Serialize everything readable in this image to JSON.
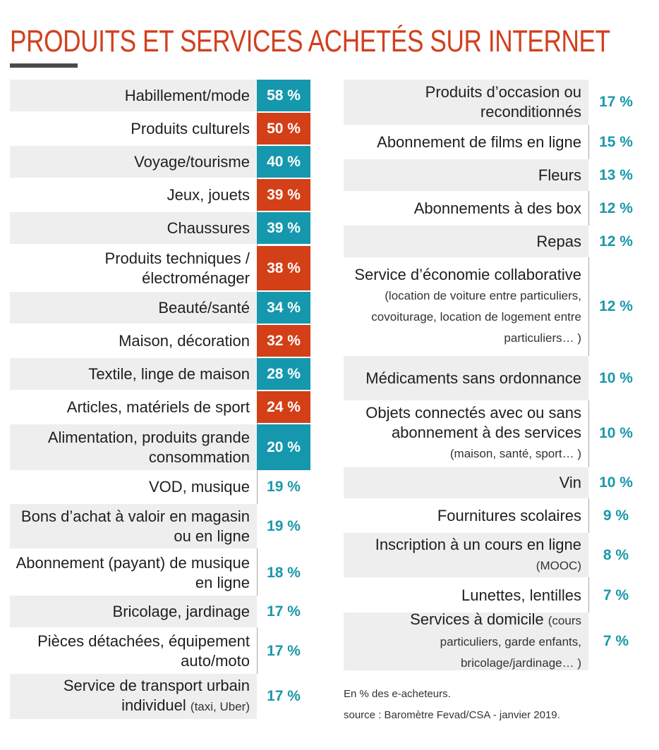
{
  "title": "PRODUITS ET SERVICES ACHETÉS SUR INTERNET",
  "colors": {
    "title": "#d2401e",
    "teal": "#1598ad",
    "orange": "#d33f17",
    "value_text": "#1a98aa",
    "shade": "#eeeeee"
  },
  "footnote": {
    "line1": "En % des e-acheteurs.",
    "line2": "source : Baromètre Fevad/CSA - janvier 2019."
  },
  "chart_data": {
    "type": "table",
    "unit": "%",
    "left": [
      {
        "label": "Habillement/mode",
        "value": 58,
        "value_label": "58 %",
        "style": "teal"
      },
      {
        "label": "Produits culturels",
        "value": 50,
        "value_label": "50 %",
        "style": "orange"
      },
      {
        "label": "Voyage/tourisme",
        "value": 40,
        "value_label": "40 %",
        "style": "teal"
      },
      {
        "label": "Jeux, jouets",
        "value": 39,
        "value_label": "39 %",
        "style": "orange"
      },
      {
        "label": "Chaussures",
        "value": 39,
        "value_label": "39 %",
        "style": "teal"
      },
      {
        "label": "Produits techniques / électroménager",
        "value": 38,
        "value_label": "38 %",
        "style": "orange"
      },
      {
        "label": "Beauté/santé",
        "value": 34,
        "value_label": "34 %",
        "style": "teal"
      },
      {
        "label": "Maison, décoration",
        "value": 32,
        "value_label": "32 %",
        "style": "orange"
      },
      {
        "label": "Textile, linge de maison",
        "value": 28,
        "value_label": "28 %",
        "style": "teal"
      },
      {
        "label": "Articles, matériels de sport",
        "value": 24,
        "value_label": "24 %",
        "style": "orange"
      },
      {
        "label": "Alimentation, produits grande consommation",
        "value": 20,
        "value_label": "20 %",
        "style": "teal"
      },
      {
        "label": "VOD, musique",
        "value": 19,
        "value_label": "19 %",
        "style": "plain"
      },
      {
        "label": "Bons d’achat à valoir en magasin ou en ligne",
        "value": 19,
        "value_label": "19 %",
        "style": "plain"
      },
      {
        "label": "Abonnement (payant) de musique en ligne",
        "value": 18,
        "value_label": "18 %",
        "style": "plain"
      },
      {
        "label": "Bricolage, jardinage",
        "value": 17,
        "value_label": "17 %",
        "style": "plain"
      },
      {
        "label": "Pièces détachées, équipement auto/moto",
        "value": 17,
        "value_label": "17 %",
        "style": "plain"
      },
      {
        "label": "Service de transport urbain individuel",
        "note": "(taxi, Uber)",
        "value": 17,
        "value_label": "17 %",
        "style": "plain"
      }
    ],
    "right": [
      {
        "label": "Produits d’occasion ou reconditionnés",
        "value": 17,
        "value_label": "17 %",
        "style": "plain"
      },
      {
        "label": "Abonnement de films en ligne",
        "value": 15,
        "value_label": "15 %",
        "style": "plain"
      },
      {
        "label": "Fleurs",
        "value": 13,
        "value_label": "13 %",
        "style": "plain"
      },
      {
        "label": "Abonnements à des box",
        "value": 12,
        "value_label": "12 %",
        "style": "plain"
      },
      {
        "label": "Repas",
        "value": 12,
        "value_label": "12 %",
        "style": "plain"
      },
      {
        "label": "Service d’économie collaborative",
        "note": "(location de voiture entre particuliers, covoiturage, location de logement entre particuliers… )",
        "value": 12,
        "value_label": "12 %",
        "style": "plain"
      },
      {
        "label": "Médicaments sans ordonnance",
        "value": 10,
        "value_label": "10 %",
        "style": "plain"
      },
      {
        "label": "Objets connectés avec ou sans abonnement à des services",
        "note": "(maison, santé, sport… )",
        "value": 10,
        "value_label": "10 %",
        "style": "plain"
      },
      {
        "label": "Vin",
        "value": 10,
        "value_label": "10 %",
        "style": "plain"
      },
      {
        "label": "Fournitures scolaires",
        "value": 9,
        "value_label": "9 %",
        "style": "plain"
      },
      {
        "label": "Inscription à un cours en ligne",
        "note": "(MOOC)",
        "value": 8,
        "value_label": "8 %",
        "style": "plain"
      },
      {
        "label": "Lunettes, lentilles",
        "value": 7,
        "value_label": "7 %",
        "style": "plain"
      },
      {
        "label": "Services à domicile",
        "note": "(cours particuliers, garde enfants, bricolage/jardinage… )",
        "value": 7,
        "value_label": "7 %",
        "style": "plain"
      }
    ]
  }
}
